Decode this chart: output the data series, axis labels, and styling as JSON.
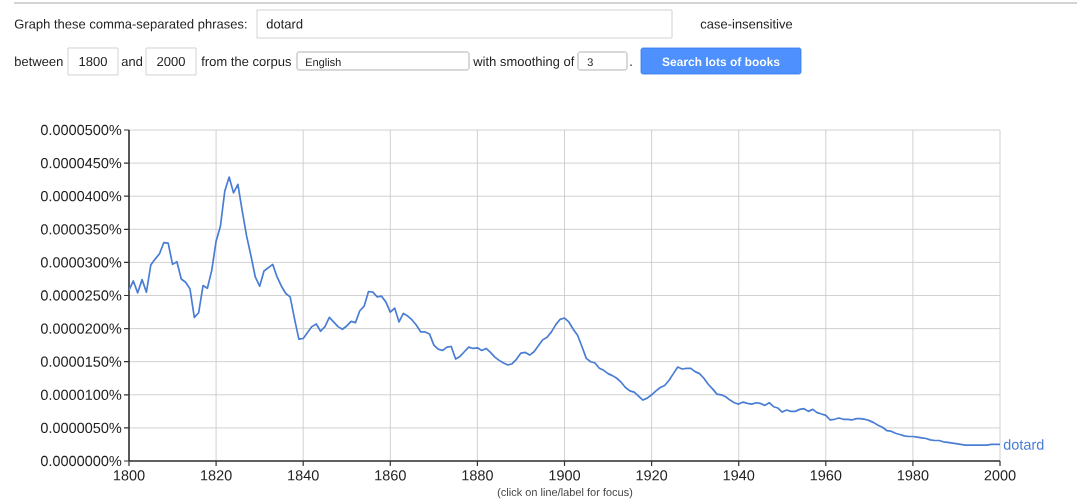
{
  "chart_data": {
    "type": "line",
    "annotations": [
      "Graph these comma-separated phrases:",
      "dotard",
      "case-insensitive",
      "between",
      "1800",
      "and",
      "2000",
      "from the corpus",
      "English",
      "with smoothing of",
      "3",
      ".",
      "Search lots of books",
      "(click on line/label for focus)"
    ],
    "x": [
      1800,
      1801,
      1802,
      1803,
      1804,
      1805,
      1806,
      1807,
      1808,
      1809,
      1810,
      1811,
      1812,
      1813,
      1814,
      1815,
      1816,
      1817,
      1818,
      1819,
      1820,
      1821,
      1822,
      1823,
      1824,
      1825,
      1826,
      1827,
      1828,
      1829,
      1830,
      1831,
      1832,
      1833,
      1834,
      1835,
      1836,
      1837,
      1838,
      1839,
      1840,
      1841,
      1842,
      1843,
      1844,
      1845,
      1846,
      1847,
      1848,
      1849,
      1850,
      1851,
      1852,
      1853,
      1854,
      1855,
      1856,
      1857,
      1858,
      1859,
      1860,
      1861,
      1862,
      1863,
      1864,
      1865,
      1866,
      1867,
      1868,
      1869,
      1870,
      1871,
      1872,
      1873,
      1874,
      1875,
      1876,
      1877,
      1878,
      1879,
      1880,
      1881,
      1882,
      1883,
      1884,
      1885,
      1886,
      1887,
      1888,
      1889,
      1890,
      1891,
      1892,
      1893,
      1894,
      1895,
      1896,
      1897,
      1898,
      1899,
      1900,
      1901,
      1902,
      1903,
      1904,
      1905,
      1906,
      1907,
      1908,
      1909,
      1910,
      1911,
      1912,
      1913,
      1914,
      1915,
      1916,
      1917,
      1918,
      1919,
      1920,
      1921,
      1922,
      1923,
      1924,
      1925,
      1926,
      1927,
      1928,
      1929,
      1930,
      1931,
      1932,
      1933,
      1934,
      1935,
      1936,
      1937,
      1938,
      1939,
      1940,
      1941,
      1942,
      1943,
      1944,
      1945,
      1946,
      1947,
      1948,
      1949,
      1950,
      1951,
      1952,
      1953,
      1954,
      1955,
      1956,
      1957,
      1958,
      1959,
      1960,
      1961,
      1962,
      1963,
      1964,
      1965,
      1966,
      1967,
      1968,
      1969,
      1970,
      1971,
      1972,
      1973,
      1974,
      1975,
      1976,
      1977,
      1978,
      1979,
      1980,
      1981,
      1982,
      1983,
      1984,
      1985,
      1986,
      1987,
      1988,
      1989,
      1990,
      1991,
      1992,
      1993,
      1994,
      1995,
      1996,
      1997,
      1998,
      1999,
      2000
    ],
    "series": [
      {
        "name": "dotard",
        "color": "#4a7dd4",
        "values": [
          2.58e-05,
          2.72e-05,
          2.54e-05,
          2.74e-05,
          2.55e-05,
          2.96e-05,
          3.05e-05,
          3.13e-05,
          3.3e-05,
          3.29e-05,
          2.97e-05,
          3.01e-05,
          2.75e-05,
          2.7e-05,
          2.6e-05,
          2.17e-05,
          2.24e-05,
          2.65e-05,
          2.61e-05,
          2.88e-05,
          3.32e-05,
          3.55e-05,
          4.08e-05,
          4.29e-05,
          4.05e-05,
          4.18e-05,
          3.78e-05,
          3.4e-05,
          3.1e-05,
          2.78e-05,
          2.64e-05,
          2.87e-05,
          2.92e-05,
          2.97e-05,
          2.78e-05,
          2.64e-05,
          2.53e-05,
          2.48e-05,
          2.15e-05,
          1.84e-05,
          1.85e-05,
          1.94e-05,
          2.03e-05,
          2.07e-05,
          1.96e-05,
          2.03e-05,
          2.17e-05,
          2.1e-05,
          2.03e-05,
          1.99e-05,
          2.04e-05,
          2.11e-05,
          2.09e-05,
          2.27e-05,
          2.34e-05,
          2.56e-05,
          2.55e-05,
          2.48e-05,
          2.49e-05,
          2.4e-05,
          2.25e-05,
          2.31e-05,
          2.1e-05,
          2.23e-05,
          2.19e-05,
          2.13e-05,
          2.05e-05,
          1.95e-05,
          1.95e-05,
          1.92e-05,
          1.75e-05,
          1.69e-05,
          1.67e-05,
          1.72e-05,
          1.73e-05,
          1.54e-05,
          1.58e-05,
          1.65e-05,
          1.72e-05,
          1.7e-05,
          1.71e-05,
          1.67e-05,
          1.7e-05,
          1.64e-05,
          1.57e-05,
          1.52e-05,
          1.48e-05,
          1.45e-05,
          1.47e-05,
          1.54e-05,
          1.63e-05,
          1.64e-05,
          1.6e-05,
          1.65e-05,
          1.74e-05,
          1.83e-05,
          1.87e-05,
          1.95e-05,
          2.06e-05,
          2.14e-05,
          2.16e-05,
          2.1e-05,
          1.99e-05,
          1.9e-05,
          1.73e-05,
          1.55e-05,
          1.5e-05,
          1.48e-05,
          1.4e-05,
          1.37e-05,
          1.32e-05,
          1.29e-05,
          1.25e-05,
          1.19e-05,
          1.11e-05,
          1.06e-05,
          1.04e-05,
          9.8e-06,
          9.2e-06,
          9.5e-06,
          1e-05,
          1.06e-05,
          1.11e-05,
          1.14e-05,
          1.22e-05,
          1.32e-05,
          1.42e-05,
          1.39e-05,
          1.4e-05,
          1.4e-05,
          1.35e-05,
          1.32e-05,
          1.25e-05,
          1.16e-05,
          1.09e-05,
          1.01e-05,
          1e-05,
          9.7e-06,
          9.2e-06,
          8.8e-06,
          8.6e-06,
          8.9e-06,
          8.7e-06,
          8.6e-06,
          8.8e-06,
          8.7e-06,
          8.4e-06,
          8.8e-06,
          8.2e-06,
          8e-06,
          7.4e-06,
          7.7e-06,
          7.5e-06,
          7.5e-06,
          7.8e-06,
          7.9e-06,
          7.5e-06,
          7.8e-06,
          7.3e-06,
          7.1e-06,
          6.9e-06,
          6.2e-06,
          6.3e-06,
          6.5e-06,
          6.3e-06,
          6.3e-06,
          6.2e-06,
          6.4e-06,
          6.4e-06,
          6.3e-06,
          6.1e-06,
          5.8e-06,
          5.4e-06,
          5.1e-06,
          4.6e-06,
          4.5e-06,
          4.2e-06,
          4e-06,
          3.8e-06,
          3.7e-06,
          3.7e-06,
          3.6e-06,
          3.5e-06,
          3.4e-06,
          3.2e-06,
          3.1e-06,
          3.1e-06,
          2.9e-06,
          2.8e-06,
          2.7e-06,
          2.6e-06,
          2.5e-06,
          2.4e-06,
          2.4e-06,
          2.4e-06,
          2.4e-06,
          2.4e-06,
          2.4e-06,
          2.5e-06,
          2.5e-06,
          2.5e-06
        ]
      }
    ],
    "xlim": [
      1800,
      2000
    ],
    "xticks": [
      1800,
      1820,
      1840,
      1860,
      1880,
      1900,
      1920,
      1940,
      1960,
      1980,
      2000
    ],
    "ylim": [
      0,
      5e-05
    ],
    "yticks": [
      {
        "value": 0,
        "label": "0.0000000%"
      },
      {
        "value": 5e-06,
        "label": "0.0000050%"
      },
      {
        "value": 1e-05,
        "label": "0.0000100%"
      },
      {
        "value": 1.5e-05,
        "label": "0.0000150%"
      },
      {
        "value": 2e-05,
        "label": "0.0000200%"
      },
      {
        "value": 2.5e-05,
        "label": "0.0000250%"
      },
      {
        "value": 3e-05,
        "label": "0.0000300%"
      },
      {
        "value": 3.5e-05,
        "label": "0.0000350%"
      },
      {
        "value": 4e-05,
        "label": "0.0000400%"
      },
      {
        "value": 4.5e-05,
        "label": "0.0000450%"
      },
      {
        "value": 5e-05,
        "label": "0.0000500%"
      }
    ],
    "grid": true
  }
}
